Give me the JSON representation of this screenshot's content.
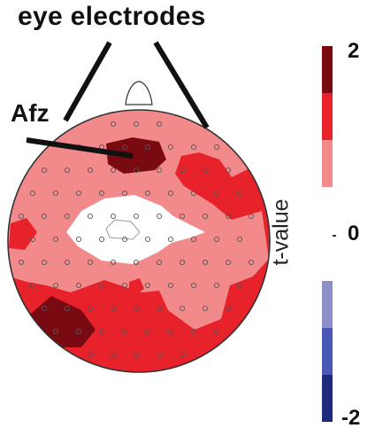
{
  "annotations": {
    "title": "eye electrodes",
    "afz": "Afz"
  },
  "colorbar": {
    "title": "t-value",
    "ticks": {
      "max": "2",
      "mid": "0",
      "min": "-2"
    },
    "bands": [
      {
        "color": "#7a0a12"
      },
      {
        "color": "#e8222a"
      },
      {
        "color": "#f28a8c"
      },
      {
        "color": "#ffffff"
      },
      {
        "color": "#ffffff"
      },
      {
        "color": "#8e8ec9"
      },
      {
        "color": "#4a57b4"
      },
      {
        "color": "#202a7c"
      }
    ]
  },
  "colors": {
    "dark_red": "#7a0a12",
    "red": "#e8222a",
    "pink": "#f28a8c",
    "white": "#ffffff",
    "outline": "#333333"
  }
}
